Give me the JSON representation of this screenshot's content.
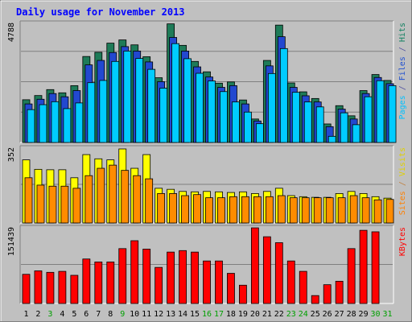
{
  "chart_data": {
    "type": "bar",
    "title": "Daily usage for November 2013",
    "categories": [
      "1",
      "2",
      "3",
      "4",
      "5",
      "6",
      "7",
      "8",
      "9",
      "10",
      "11",
      "12",
      "13",
      "14",
      "15",
      "16",
      "17",
      "18",
      "19",
      "20",
      "21",
      "22",
      "23",
      "24",
      "25",
      "26",
      "27",
      "28",
      "29",
      "30",
      "31"
    ],
    "weekend_days": [
      "3",
      "9",
      "16",
      "17",
      "23",
      "24",
      "30",
      "31"
    ],
    "panels": [
      {
        "name": "top",
        "max_label": "4788",
        "ylim": [
          0,
          4788
        ],
        "right_label_parts": [
          {
            "text": "Pages",
            "color": "#00c0ff"
          },
          {
            "text": " / ",
            "color": "#5050a0"
          },
          {
            "text": "Files",
            "color": "#2050d0"
          },
          {
            "text": " / ",
            "color": "#5050a0"
          },
          {
            "text": "Hits",
            "color": "#108060"
          }
        ],
        "series": [
          {
            "name": "Hits",
            "color": "#1e7b58",
            "values": [
              1730,
              1900,
              2140,
              2010,
              2300,
              3480,
              3650,
              4020,
              4150,
              3950,
              3470,
              2620,
              4800,
              3930,
              3280,
              2860,
              2400,
              2450,
              1720,
              950,
              3320,
              4750,
              2410,
              2050,
              1780,
              750,
              1490,
              1080,
              2100,
              2750,
              2510
            ]
          },
          {
            "name": "Files",
            "color": "#2248d0",
            "values": [
              1560,
              1750,
              1980,
              1850,
              2100,
              3140,
              3320,
              3640,
              3880,
              3700,
              3260,
              2460,
              4250,
              3700,
              3060,
              2650,
              2230,
              2300,
              1560,
              870,
              3100,
              4280,
              2230,
              1890,
              1640,
              640,
              1350,
              950,
              1980,
              2630,
              2380
            ]
          },
          {
            "name": "Pages",
            "color": "#00ccff",
            "values": [
              1330,
              1530,
              1650,
              1370,
              1600,
              2420,
              2510,
              3280,
              3700,
              3400,
              2960,
              2200,
              4000,
              3390,
              2800,
              2490,
              2060,
              1640,
              1230,
              760,
              2790,
              3800,
              2030,
              1640,
              1440,
              250,
              1200,
              720,
              1850,
              2500,
              2300
            ]
          }
        ]
      },
      {
        "name": "middle",
        "max_label": "352",
        "ylim": [
          0,
          352
        ],
        "right_label_parts": [
          {
            "text": "Sites",
            "color": "#ff8000"
          },
          {
            "text": " / ",
            "color": "#c08040"
          },
          {
            "text": "Visits",
            "color": "#e0d000"
          }
        ],
        "series": [
          {
            "name": "Visits",
            "color": "#ffff00",
            "values": [
              300,
              255,
              253,
              253,
              215,
              325,
              305,
              300,
              352,
              260,
              325,
              165,
              160,
              150,
              148,
              150,
              148,
              145,
              148,
              140,
              150,
              165,
              130,
              125,
              122,
              122,
              140,
              150,
              140,
              125,
              118
            ]
          },
          {
            "name": "Sites",
            "color": "#ff8c00",
            "values": [
              215,
              180,
              175,
              175,
              165,
              225,
              260,
              275,
              250,
              225,
              210,
              140,
              140,
              130,
              135,
              120,
              120,
              125,
              125,
              125,
              125,
              130,
              120,
              120,
              120,
              120,
              120,
              130,
              120,
              110,
              112
            ]
          }
        ]
      },
      {
        "name": "bottom",
        "max_label": "151439",
        "ylim": [
          0,
          151439
        ],
        "right_label_parts": [
          {
            "text": "KBytes",
            "color": "#ff0000"
          }
        ],
        "series": [
          {
            "name": "KBytes",
            "color": "#ff0000",
            "values": [
              59000,
              66000,
              63000,
              65000,
              57000,
              90000,
              84000,
              84000,
              111000,
              127000,
              110000,
              73000,
              104000,
              107000,
              104000,
              86000,
              86000,
              61000,
              37000,
              153000,
              135000,
              123000,
              86000,
              65000,
              16000,
              38000,
              45000,
              111000,
              148000,
              145000,
              0
            ]
          }
        ]
      }
    ]
  }
}
